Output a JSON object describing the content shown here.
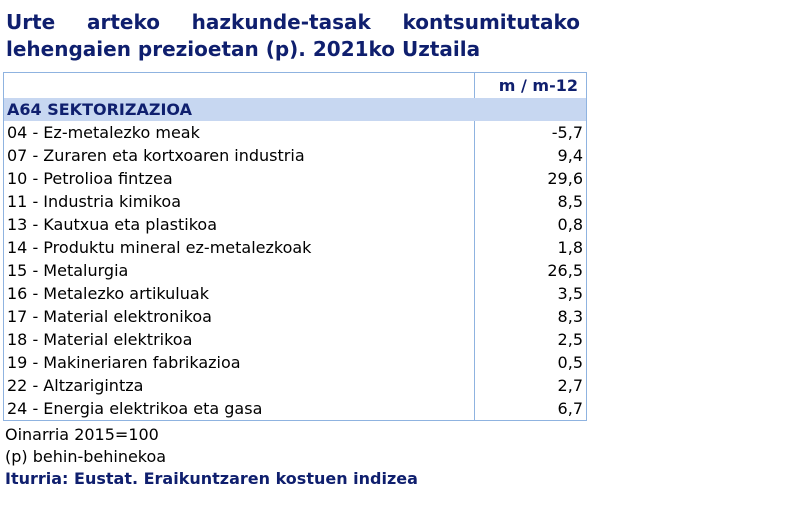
{
  "title": "Urte arteko hazkunde-tasak kontsumitutako lehengaien prezioetan (p). 2021ko Uztaila",
  "table": {
    "column_header": "m / m-12",
    "section_label": "A64 SEKTORIZAZIOA",
    "rows": [
      {
        "label": "04 - Ez-metalezko meak",
        "value": "-5,7"
      },
      {
        "label": "07 - Zuraren eta kortxoaren industria",
        "value": "9,4"
      },
      {
        "label": "10 - Petrolioa fintzea",
        "value": "29,6"
      },
      {
        "label": "11 - Industria kimikoa",
        "value": "8,5"
      },
      {
        "label": "13 - Kautxua eta plastikoa",
        "value": "0,8"
      },
      {
        "label": "14 - Produktu mineral ez-metalezkoak",
        "value": "1,8"
      },
      {
        "label": "15 - Metalurgia",
        "value": "26,5"
      },
      {
        "label": "16 - Metalezko artikuluak",
        "value": "3,5"
      },
      {
        "label": "17 - Material elektronikoa",
        "value": "8,3"
      },
      {
        "label": "18 - Material elektrikoa",
        "value": "2,5"
      },
      {
        "label": "19 - Makineriaren fabrikazioa",
        "value": "0,5"
      },
      {
        "label": "22 - Altzarigintza",
        "value": "2,7"
      },
      {
        "label": "24 - Energia elektrikoa eta gasa",
        "value": "6,7"
      }
    ]
  },
  "notes": {
    "base": "Oinarria 2015=100",
    "provisional": "(p) behin-behinekoa",
    "source": "Iturria: Eustat. Eraikuntzaren kostuen indizea"
  },
  "colors": {
    "title": "#0f1f6e",
    "section_bg": "#c7d7f1",
    "border": "#8fb3e0"
  }
}
